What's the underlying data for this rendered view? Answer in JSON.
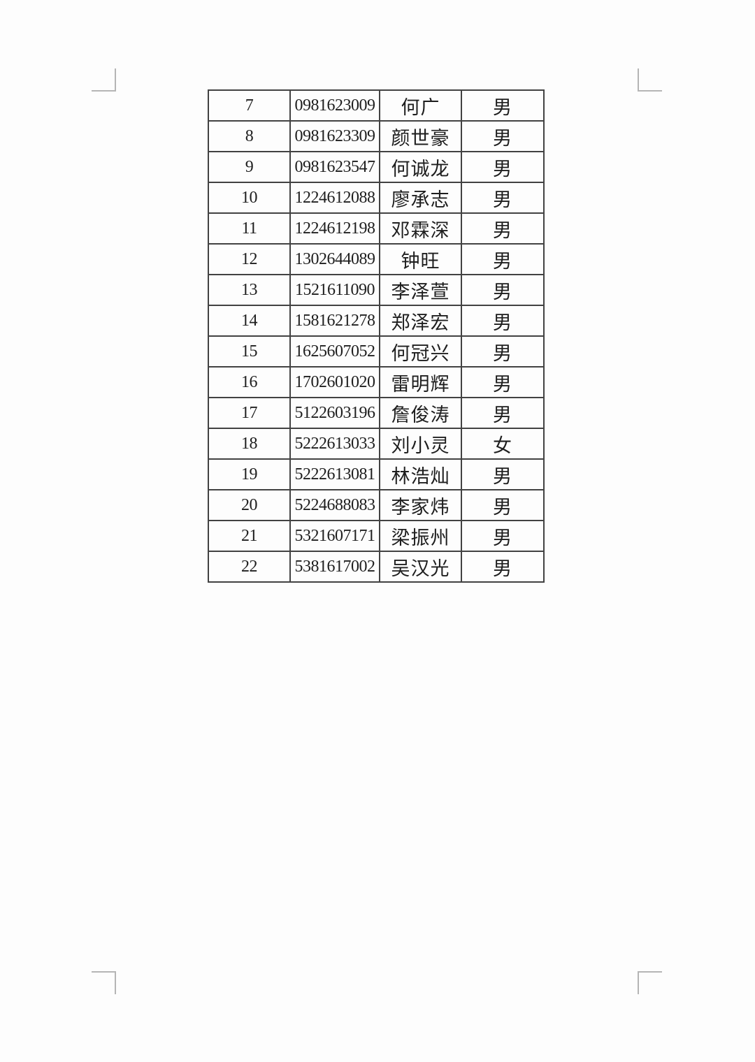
{
  "page": {
    "background_color": "#fdfdfd",
    "margin_mark_color": "#b5b5b5"
  },
  "table": {
    "border_color": "#424242",
    "text_color": "#1e1e1e",
    "rows": [
      {
        "index": "7",
        "student_id": "0981623009",
        "name": "何广",
        "gender": "男"
      },
      {
        "index": "8",
        "student_id": "0981623309",
        "name": "颜世豪",
        "gender": "男"
      },
      {
        "index": "9",
        "student_id": "0981623547",
        "name": "何诚龙",
        "gender": "男"
      },
      {
        "index": "10",
        "student_id": "1224612088",
        "name": "廖承志",
        "gender": "男"
      },
      {
        "index": "11",
        "student_id": "1224612198",
        "name": "邓霖深",
        "gender": "男"
      },
      {
        "index": "12",
        "student_id": "1302644089",
        "name": "钟旺",
        "gender": "男"
      },
      {
        "index": "13",
        "student_id": "1521611090",
        "name": "李泽萱",
        "gender": "男"
      },
      {
        "index": "14",
        "student_id": "1581621278",
        "name": "郑泽宏",
        "gender": "男"
      },
      {
        "index": "15",
        "student_id": "1625607052",
        "name": "何冠兴",
        "gender": "男"
      },
      {
        "index": "16",
        "student_id": "1702601020",
        "name": "雷明辉",
        "gender": "男"
      },
      {
        "index": "17",
        "student_id": "5122603196",
        "name": "詹俊涛",
        "gender": "男"
      },
      {
        "index": "18",
        "student_id": "5222613033",
        "name": "刘小灵",
        "gender": "女"
      },
      {
        "index": "19",
        "student_id": "5222613081",
        "name": "林浩灿",
        "gender": "男"
      },
      {
        "index": "20",
        "student_id": "5224688083",
        "name": "李家炜",
        "gender": "男"
      },
      {
        "index": "21",
        "student_id": "5321607171",
        "name": "梁振州",
        "gender": "男"
      },
      {
        "index": "22",
        "student_id": "5381617002",
        "name": "吴汉光",
        "gender": "男"
      }
    ]
  }
}
